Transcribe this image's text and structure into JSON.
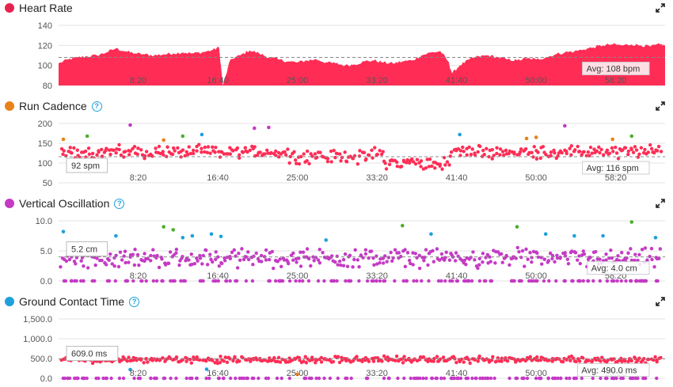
{
  "panels": [
    {
      "title": "Heart Rate",
      "color": "#e8224f",
      "help": false,
      "callout": "",
      "avg_label": "Avg: 108 bpm",
      "chart_data": {
        "type": "area",
        "title": "Heart Rate",
        "ylim": [
          80,
          140
        ],
        "yticks": [
          "140",
          "120",
          "100",
          "80"
        ],
        "ytick_values": [
          140,
          120,
          100,
          80
        ],
        "avg": 108,
        "x_tick_labels": [
          "8:20",
          "16:40",
          "25:00",
          "33:20",
          "41:40",
          "50:00",
          "58:20"
        ],
        "x_tick_minutes": [
          8.333,
          16.667,
          25,
          33.333,
          41.667,
          50,
          58.333
        ],
        "xlim_minutes": [
          0,
          63.5
        ],
        "series_color": "#ff2d55",
        "x_minutes": [
          0,
          1,
          2,
          3,
          4,
          5,
          6,
          7,
          8,
          9,
          10,
          11,
          12,
          13,
          14,
          15,
          16,
          16.8,
          17.2,
          18,
          19,
          20,
          21,
          22,
          23,
          24,
          25,
          26,
          27,
          28,
          29,
          30,
          31,
          32,
          33,
          34,
          35,
          36,
          37,
          38,
          39,
          40,
          40.8,
          41.2,
          42,
          43,
          44,
          45,
          46,
          47,
          48,
          49,
          50,
          51,
          52,
          53,
          54,
          55,
          56,
          57,
          58,
          59,
          60,
          61,
          62,
          63,
          63.5
        ],
        "values": [
          102,
          106,
          108,
          109,
          110,
          113,
          117,
          114,
          112,
          111,
          110,
          111,
          112,
          113,
          112,
          113,
          115,
          118,
          80,
          106,
          110,
          115,
          112,
          108,
          106,
          104,
          103,
          105,
          106,
          103,
          102,
          100,
          101,
          104,
          105,
          103,
          102,
          104,
          105,
          110,
          113,
          114,
          104,
          92,
          100,
          106,
          109,
          110,
          108,
          106,
          105,
          107,
          106,
          108,
          111,
          113,
          114,
          116,
          118,
          120,
          121,
          120,
          121,
          120,
          119,
          121,
          120
        ]
      }
    },
    {
      "title": "Run Cadence",
      "color": "#e8821a",
      "help": true,
      "callout": "92 spm",
      "avg_label": "Avg: 116 spm",
      "chart_data": {
        "type": "scatter",
        "title": "Run Cadence",
        "ylim": [
          50,
          200
        ],
        "yticks": [
          "200",
          "150",
          "100",
          "50"
        ],
        "ytick_values": [
          200,
          150,
          100,
          50
        ],
        "avg": 116,
        "x_tick_labels": [
          "8:20",
          "16:40",
          "25:00",
          "33:20",
          "41:40",
          "50:00",
          "58:20"
        ],
        "x_tick_minutes": [
          8.333,
          16.667,
          25,
          33.333,
          41.667,
          50,
          58.333
        ],
        "xlim_minutes": [
          0,
          63.5
        ],
        "series_color": "#ff2d55",
        "outliers": [
          {
            "x": 0.5,
            "y": 160,
            "c": "#e8821a"
          },
          {
            "x": 3,
            "y": 168,
            "c": "#4caf2e"
          },
          {
            "x": 7.5,
            "y": 196,
            "c": "#c53ac5"
          },
          {
            "x": 13,
            "y": 168,
            "c": "#4caf2e"
          },
          {
            "x": 15,
            "y": 172,
            "c": "#1ea0dc"
          },
          {
            "x": 20.5,
            "y": 188,
            "c": "#c53ac5"
          },
          {
            "x": 22,
            "y": 190,
            "c": "#c53ac5"
          },
          {
            "x": 11,
            "y": 158,
            "c": "#e8821a"
          },
          {
            "x": 42,
            "y": 172,
            "c": "#1ea0dc"
          },
          {
            "x": 49,
            "y": 162,
            "c": "#e8821a"
          },
          {
            "x": 50,
            "y": 165,
            "c": "#e8821a"
          },
          {
            "x": 53,
            "y": 194,
            "c": "#c53ac5"
          },
          {
            "x": 60,
            "y": 168,
            "c": "#4caf2e"
          },
          {
            "x": 58,
            "y": 160,
            "c": "#e8821a"
          }
        ]
      }
    },
    {
      "title": "Vertical Oscillation",
      "color": "#c53ac5",
      "help": true,
      "callout": "5.2 cm",
      "avg_label": "Avg: 4.0 cm",
      "chart_data": {
        "type": "scatter",
        "title": "Vertical Oscillation",
        "ylim": [
          0,
          10
        ],
        "yticks": [
          "10.0",
          "5.0",
          "0.0"
        ],
        "ytick_values": [
          10,
          5,
          0
        ],
        "avg": 4.0,
        "x_tick_labels": [
          "8:20",
          "16:40",
          "25:00",
          "33:20",
          "41:40",
          "50:00",
          "58:20"
        ],
        "x_tick_minutes": [
          8.333,
          16.667,
          25,
          33.333,
          41.667,
          50,
          58.333
        ],
        "xlim_minutes": [
          0,
          63.5
        ],
        "series_color": "#c53ac5",
        "outliers": [
          {
            "x": 0.5,
            "y": 8.2,
            "c": "#1ea0dc"
          },
          {
            "x": 6,
            "y": 7.5,
            "c": "#1ea0dc"
          },
          {
            "x": 11,
            "y": 9.0,
            "c": "#4caf2e"
          },
          {
            "x": 12,
            "y": 8.5,
            "c": "#4caf2e"
          },
          {
            "x": 13,
            "y": 7.2,
            "c": "#1ea0dc"
          },
          {
            "x": 14,
            "y": 7.5,
            "c": "#1ea0dc"
          },
          {
            "x": 16,
            "y": 7.8,
            "c": "#1ea0dc"
          },
          {
            "x": 17,
            "y": 7.4,
            "c": "#1ea0dc"
          },
          {
            "x": 28,
            "y": 6.8,
            "c": "#1ea0dc"
          },
          {
            "x": 36,
            "y": 9.2,
            "c": "#4caf2e"
          },
          {
            "x": 39,
            "y": 7.8,
            "c": "#1ea0dc"
          },
          {
            "x": 48,
            "y": 9.0,
            "c": "#4caf2e"
          },
          {
            "x": 51,
            "y": 7.8,
            "c": "#1ea0dc"
          },
          {
            "x": 54,
            "y": 7.5,
            "c": "#1ea0dc"
          },
          {
            "x": 57,
            "y": 7.5,
            "c": "#1ea0dc"
          },
          {
            "x": 60,
            "y": 9.8,
            "c": "#4caf2e"
          },
          {
            "x": 62.5,
            "y": 7.2,
            "c": "#1ea0dc"
          }
        ]
      }
    },
    {
      "title": "Ground Contact Time",
      "color": "#1ea0dc",
      "help": true,
      "callout": "609.0 ms",
      "avg_label": "Avg: 490.0 ms",
      "chart_data": {
        "type": "scatter",
        "title": "Ground Contact Time",
        "ylim": [
          0,
          1500
        ],
        "yticks": [
          "1,500.0",
          "1,000.0",
          "500.0",
          "0.0"
        ],
        "ytick_values": [
          1500,
          1000,
          500,
          0
        ],
        "avg": 490,
        "x_tick_labels": [
          "8:20",
          "16:40",
          "25:00",
          "33:20",
          "41:40",
          "50:00",
          "58:20"
        ],
        "x_tick_minutes": [
          8.333,
          16.667,
          25,
          33.333,
          41.667,
          50,
          58.333
        ],
        "xlim_minutes": [
          0,
          63.5
        ],
        "series_color": "#ff2d55",
        "outliers": [
          {
            "x": 7.5,
            "y": 220,
            "c": "#1ea0dc"
          },
          {
            "x": 15.5,
            "y": 230,
            "c": "#1ea0dc"
          },
          {
            "x": 25,
            "y": 100,
            "c": "#e8821a"
          }
        ]
      }
    }
  ]
}
